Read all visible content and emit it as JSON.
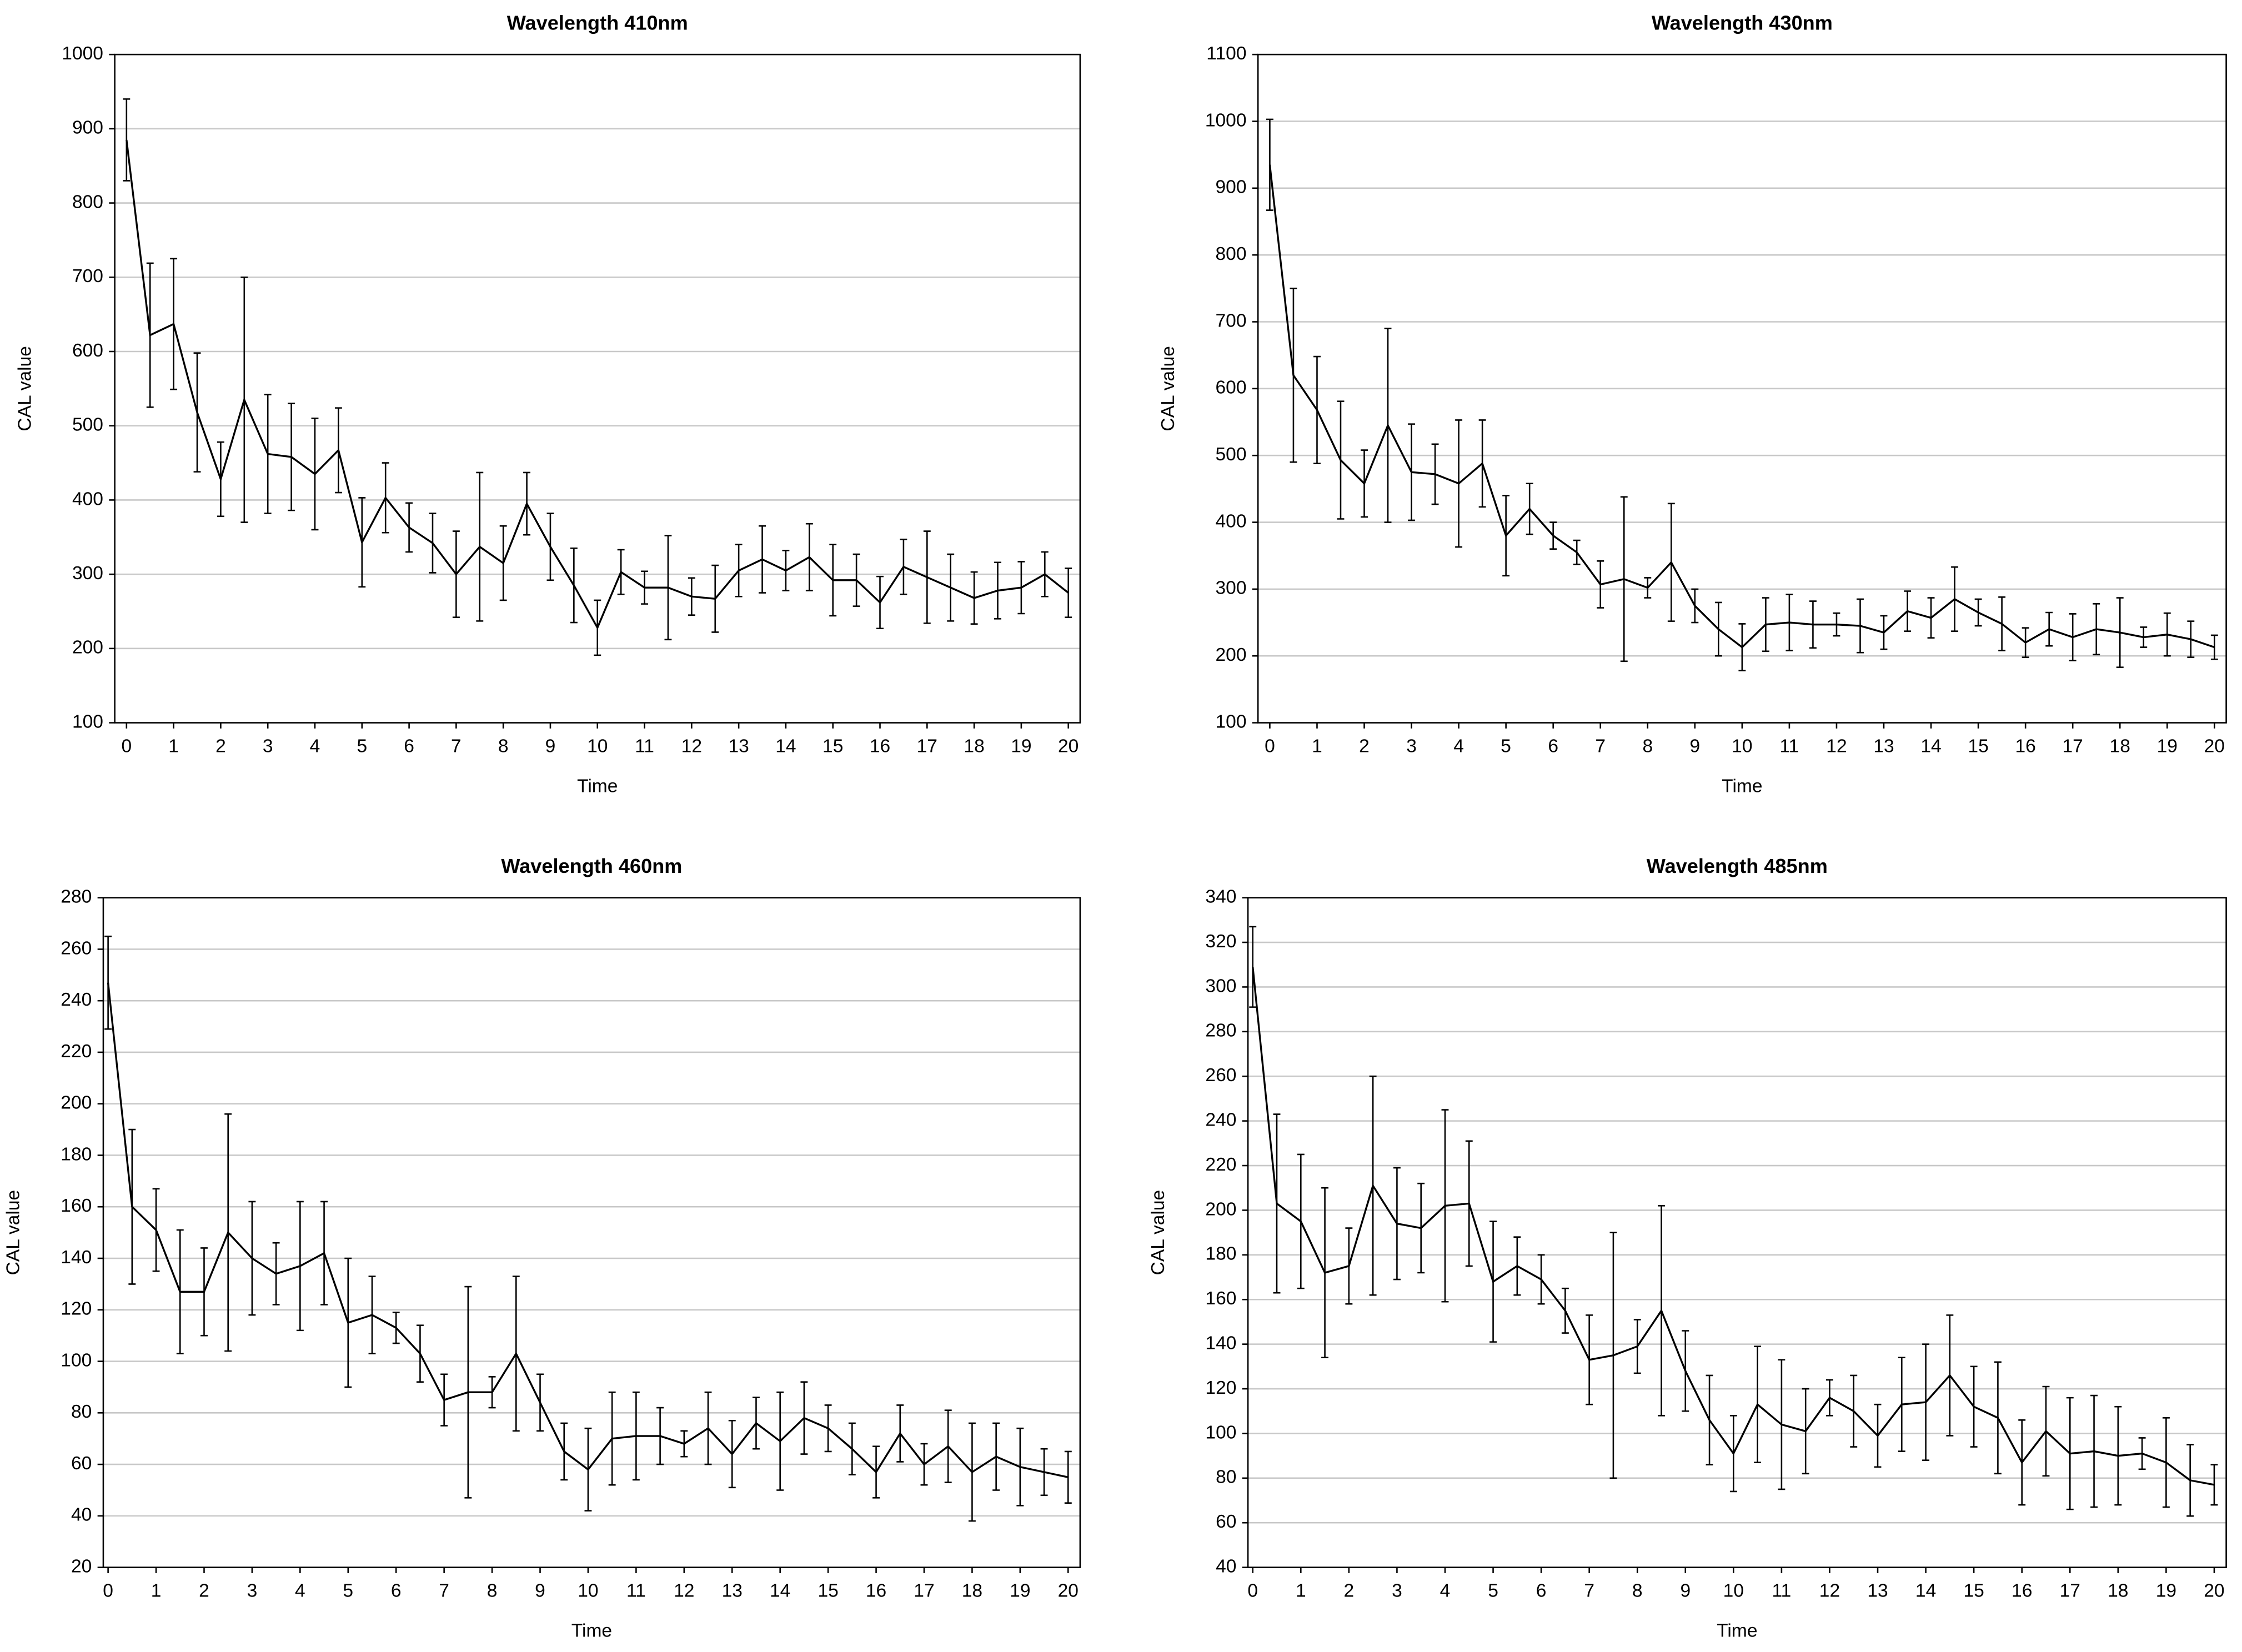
{
  "chart_data": [
    {
      "type": "line",
      "title": "Wavelength 410nm",
      "xlabel": "Time",
      "ylabel": "CAL value",
      "x": [
        0,
        0.5,
        1,
        1.5,
        2,
        2.5,
        3,
        3.5,
        4,
        4.5,
        5,
        5.5,
        6,
        6.5,
        7,
        7.5,
        8,
        8.5,
        9,
        9.5,
        10,
        10.5,
        11,
        11.5,
        12,
        12.5,
        13,
        13.5,
        14,
        14.5,
        15,
        15.5,
        16,
        16.5,
        17,
        17.5,
        18,
        18.5,
        19,
        19.5,
        20
      ],
      "xlim": [
        -0.25,
        20.25
      ],
      "xticks": [
        0,
        1,
        2,
        3,
        4,
        5,
        6,
        7,
        8,
        9,
        10,
        11,
        12,
        13,
        14,
        15,
        16,
        17,
        18,
        19,
        20
      ],
      "ylim": [
        100,
        1000
      ],
      "yticks": [
        100,
        200,
        300,
        400,
        500,
        600,
        700,
        800,
        900,
        1000
      ],
      "grid": true,
      "series": [
        {
          "color": "#000000",
          "values": [
            885,
            622,
            637,
            518,
            428,
            535,
            462,
            458,
            435,
            467,
            343,
            403,
            363,
            342,
            300,
            337,
            315,
            395,
            337,
            285,
            228,
            303,
            282,
            282,
            270,
            267,
            305,
            320,
            305,
            323,
            292,
            292,
            262,
            310,
            296,
            282,
            268,
            278,
            282,
            300,
            275
          ],
          "errors": [
            55,
            97,
            88,
            80,
            50,
            165,
            80,
            72,
            75,
            57,
            60,
            47,
            33,
            40,
            58,
            100,
            50,
            42,
            45,
            50,
            37,
            30,
            22,
            70,
            25,
            45,
            35,
            45,
            27,
            45,
            48,
            35,
            35,
            37,
            62,
            45,
            35,
            38,
            35,
            30,
            33
          ]
        }
      ]
    },
    {
      "type": "line",
      "title": "Wavelength 430nm",
      "xlabel": "Time",
      "ylabel": "CAL value",
      "x": [
        0,
        0.5,
        1,
        1.5,
        2,
        2.5,
        3,
        3.5,
        4,
        4.5,
        5,
        5.5,
        6,
        6.5,
        7,
        7.5,
        8,
        8.5,
        9,
        9.5,
        10,
        10.5,
        11,
        11.5,
        12,
        12.5,
        13,
        13.5,
        14,
        14.5,
        15,
        15.5,
        16,
        16.5,
        17,
        17.5,
        18,
        18.5,
        19,
        19.5,
        20
      ],
      "xlim": [
        -0.25,
        20.25
      ],
      "xticks": [
        0,
        1,
        2,
        3,
        4,
        5,
        6,
        7,
        8,
        9,
        10,
        11,
        12,
        13,
        14,
        15,
        16,
        17,
        18,
        19,
        20
      ],
      "ylim": [
        100,
        1100
      ],
      "yticks": [
        100,
        200,
        300,
        400,
        500,
        600,
        700,
        800,
        900,
        1000,
        1100
      ],
      "grid": true,
      "series": [
        {
          "color": "#000000",
          "values": [
            935,
            620,
            568,
            493,
            458,
            545,
            475,
            472,
            458,
            488,
            380,
            420,
            380,
            355,
            307,
            315,
            302,
            340,
            275,
            240,
            213,
            247,
            250,
            247,
            247,
            245,
            235,
            267,
            257,
            285,
            265,
            248,
            220,
            240,
            228,
            240,
            235,
            228,
            232,
            225,
            213
          ],
          "errors": [
            68,
            130,
            80,
            88,
            50,
            145,
            72,
            45,
            95,
            65,
            60,
            38,
            20,
            18,
            35,
            123,
            15,
            88,
            25,
            40,
            35,
            40,
            42,
            35,
            17,
            40,
            25,
            30,
            30,
            48,
            20,
            40,
            22,
            25,
            35,
            38,
            52,
            15,
            32,
            27,
            18
          ]
        }
      ]
    },
    {
      "type": "line",
      "title": "Wavelength 460nm",
      "xlabel": "Time",
      "ylabel": "CAL value",
      "x": [
        0,
        0.5,
        1,
        1.5,
        2,
        2.5,
        3,
        3.5,
        4,
        4.5,
        5,
        5.5,
        6,
        6.5,
        7,
        7.5,
        8,
        8.5,
        9,
        9.5,
        10,
        10.5,
        11,
        11.5,
        12,
        12.5,
        13,
        13.5,
        14,
        14.5,
        15,
        15.5,
        16,
        16.5,
        17,
        17.5,
        18,
        18.5,
        19,
        19.5,
        20
      ],
      "xlim": [
        -0.1,
        20.25
      ],
      "xticks": [
        0,
        1,
        2,
        3,
        4,
        5,
        6,
        7,
        8,
        9,
        10,
        11,
        12,
        13,
        14,
        15,
        16,
        17,
        18,
        19,
        20
      ],
      "ylim": [
        20,
        280
      ],
      "yticks": [
        20,
        40,
        60,
        80,
        100,
        120,
        140,
        160,
        180,
        200,
        220,
        240,
        260,
        280
      ],
      "grid": true,
      "series": [
        {
          "color": "#000000",
          "values": [
            247,
            160,
            151,
            127,
            127,
            150,
            140,
            134,
            137,
            142,
            115,
            118,
            113,
            103,
            85,
            88,
            88,
            103,
            84,
            65,
            58,
            70,
            71,
            71,
            68,
            74,
            64,
            76,
            69,
            78,
            74,
            66,
            57,
            72,
            60,
            67,
            57,
            63,
            59,
            57,
            55
          ],
          "errors": [
            18,
            30,
            16,
            24,
            17,
            46,
            22,
            12,
            25,
            20,
            25,
            15,
            6,
            11,
            10,
            41,
            6,
            30,
            11,
            11,
            16,
            18,
            17,
            11,
            5,
            14,
            13,
            10,
            19,
            14,
            9,
            10,
            10,
            11,
            8,
            14,
            19,
            13,
            15,
            9,
            10
          ]
        }
      ]
    },
    {
      "type": "line",
      "title": "Wavelength 485nm",
      "xlabel": "Time",
      "ylabel": "CAL value",
      "x": [
        0,
        0.5,
        1,
        1.5,
        2,
        2.5,
        3,
        3.5,
        4,
        4.5,
        5,
        5.5,
        6,
        6.5,
        7,
        7.5,
        8,
        8.5,
        9,
        9.5,
        10,
        10.5,
        11,
        11.5,
        12,
        12.5,
        13,
        13.5,
        14,
        14.5,
        15,
        15.5,
        16,
        16.5,
        17,
        17.5,
        18,
        18.5,
        19,
        19.5,
        20
      ],
      "xlim": [
        -0.1,
        20.25
      ],
      "xticks": [
        0,
        1,
        2,
        3,
        4,
        5,
        6,
        7,
        8,
        9,
        10,
        11,
        12,
        13,
        14,
        15,
        16,
        17,
        18,
        19,
        20
      ],
      "ylim": [
        40,
        340
      ],
      "yticks": [
        40,
        60,
        80,
        100,
        120,
        140,
        160,
        180,
        200,
        220,
        240,
        260,
        280,
        300,
        320,
        340
      ],
      "grid": true,
      "series": [
        {
          "color": "#000000",
          "values": [
            309,
            203,
            195,
            172,
            175,
            211,
            194,
            192,
            202,
            203,
            168,
            175,
            169,
            155,
            133,
            135,
            139,
            155,
            128,
            106,
            91,
            113,
            104,
            101,
            116,
            110,
            99,
            113,
            114,
            126,
            112,
            107,
            87,
            101,
            91,
            92,
            90,
            91,
            87,
            79,
            77
          ],
          "errors": [
            18,
            40,
            30,
            38,
            17,
            49,
            25,
            20,
            43,
            28,
            27,
            13,
            11,
            10,
            20,
            55,
            12,
            47,
            18,
            20,
            17,
            26,
            29,
            19,
            8,
            16,
            14,
            21,
            26,
            27,
            18,
            25,
            19,
            20,
            25,
            25,
            22,
            7,
            20,
            16,
            9
          ]
        }
      ]
    }
  ]
}
